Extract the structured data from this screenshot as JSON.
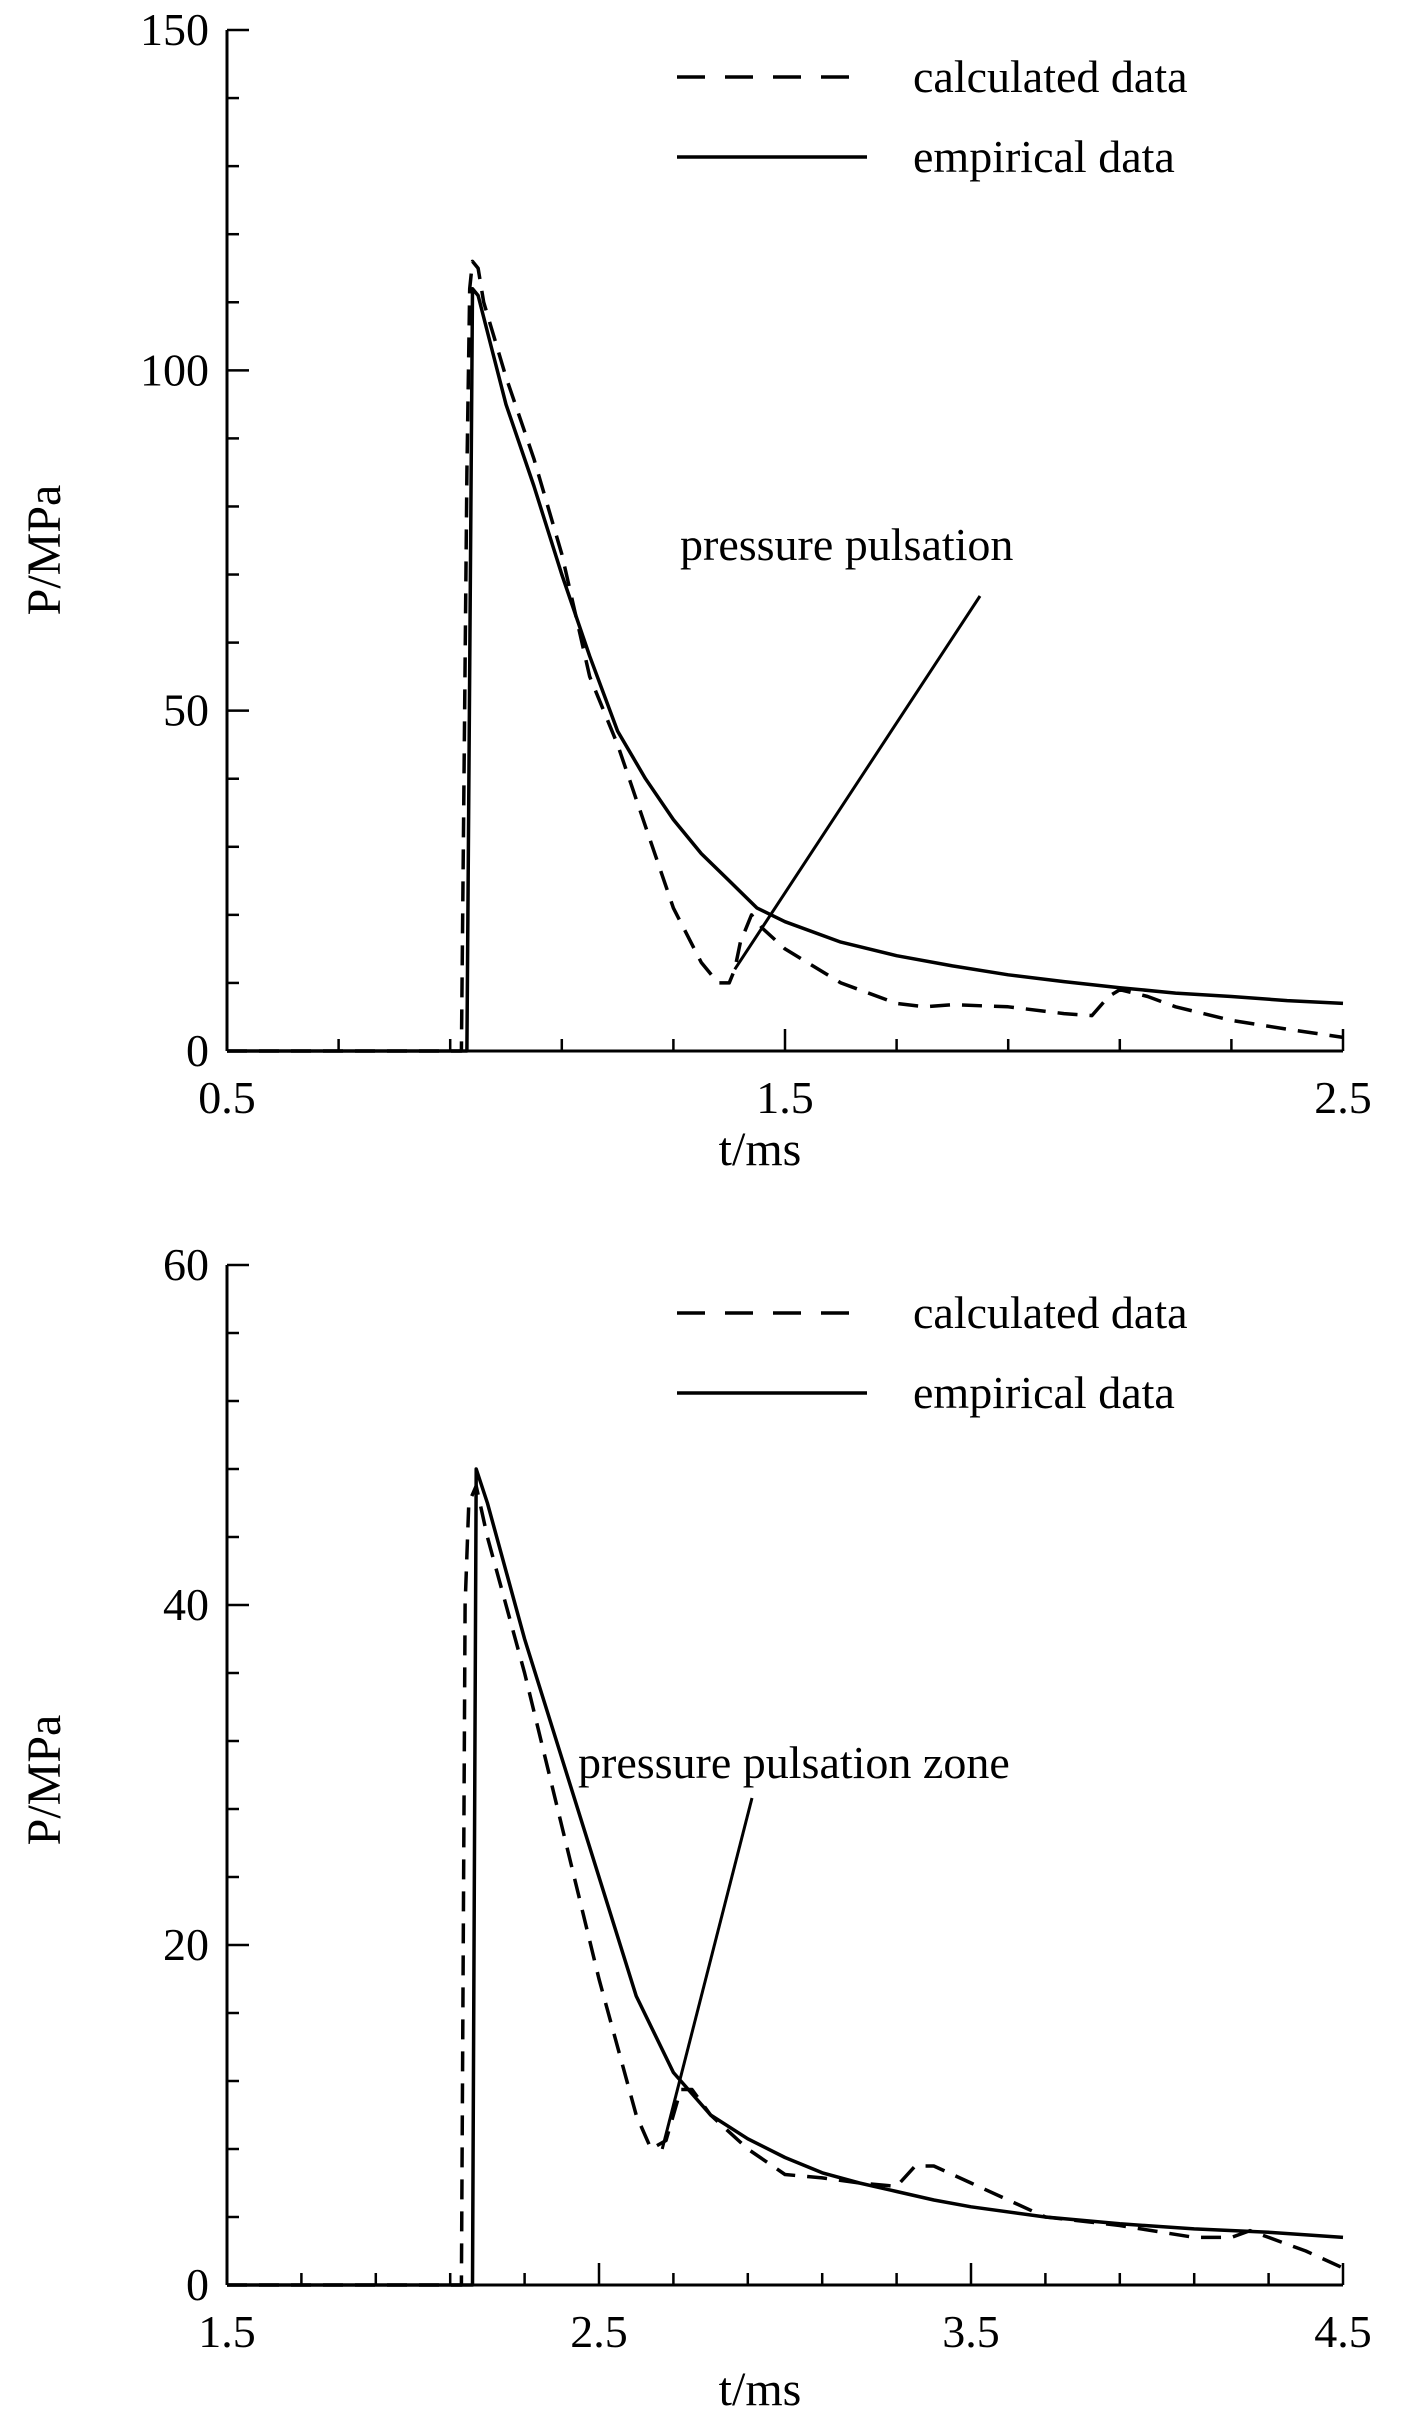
{
  "chart_data": [
    {
      "type": "line",
      "xlabel": "t/ms",
      "ylabel": "P/MPa",
      "xlim": [
        0.5,
        2.5
      ],
      "ylim": [
        0,
        150
      ],
      "x_ticks": [
        0.5,
        1.5,
        2.5
      ],
      "x_tick_labels": [
        "0.5",
        "1.5",
        "2.5"
      ],
      "y_ticks": [
        0,
        50,
        100,
        150
      ],
      "y_tick_labels": [
        "0",
        "50",
        "100",
        "150"
      ],
      "legend": "top-right",
      "annotation": {
        "text": "pressure pulsation",
        "point": [
          1.41,
          12
        ]
      },
      "series": [
        {
          "name": "calculated data",
          "style": "dashed",
          "points": [
            [
              0.5,
              0
            ],
            [
              0.9,
              0
            ],
            [
              0.92,
              0
            ],
            [
              0.93,
              85
            ],
            [
              0.935,
              112
            ],
            [
              0.94,
              116
            ],
            [
              0.95,
              115
            ],
            [
              0.96,
              110
            ],
            [
              1.0,
              99
            ],
            [
              1.05,
              87
            ],
            [
              1.1,
              73
            ],
            [
              1.15,
              55
            ],
            [
              1.2,
              45
            ],
            [
              1.25,
              33
            ],
            [
              1.3,
              21
            ],
            [
              1.35,
              13
            ],
            [
              1.38,
              10
            ],
            [
              1.4,
              10
            ],
            [
              1.41,
              12
            ],
            [
              1.42,
              16
            ],
            [
              1.44,
              20
            ],
            [
              1.46,
              18
            ],
            [
              1.5,
              15
            ],
            [
              1.6,
              10
            ],
            [
              1.7,
              7
            ],
            [
              1.75,
              6.5
            ],
            [
              1.8,
              6.8
            ],
            [
              1.9,
              6.5
            ],
            [
              2.0,
              5.5
            ],
            [
              2.05,
              5.2
            ],
            [
              2.08,
              8
            ],
            [
              2.1,
              9
            ],
            [
              2.15,
              8
            ],
            [
              2.2,
              6.5
            ],
            [
              2.3,
              4.5
            ],
            [
              2.4,
              3.2
            ],
            [
              2.5,
              2
            ]
          ]
        },
        {
          "name": "empirical data",
          "style": "solid",
          "points": [
            [
              0.5,
              0
            ],
            [
              0.92,
              0
            ],
            [
              0.93,
              0
            ],
            [
              0.94,
              112
            ],
            [
              0.95,
              111
            ],
            [
              1.0,
              95
            ],
            [
              1.05,
              83
            ],
            [
              1.1,
              70
            ],
            [
              1.15,
              58
            ],
            [
              1.2,
              47
            ],
            [
              1.25,
              40
            ],
            [
              1.3,
              34
            ],
            [
              1.35,
              29
            ],
            [
              1.4,
              25
            ],
            [
              1.45,
              21
            ],
            [
              1.5,
              19
            ],
            [
              1.6,
              16
            ],
            [
              1.7,
              14
            ],
            [
              1.8,
              12.5
            ],
            [
              1.9,
              11.2
            ],
            [
              2.0,
              10.2
            ],
            [
              2.1,
              9.3
            ],
            [
              2.2,
              8.5
            ],
            [
              2.3,
              8
            ],
            [
              2.4,
              7.4
            ],
            [
              2.5,
              7
            ]
          ]
        }
      ]
    },
    {
      "type": "line",
      "xlabel": "t/ms",
      "ylabel": "P/MPa",
      "xlim": [
        1.5,
        4.5
      ],
      "ylim": [
        0,
        60
      ],
      "x_ticks": [
        1.5,
        2.5,
        3.5,
        4.5
      ],
      "x_tick_labels": [
        "1.5",
        "2.5",
        "3.5",
        "4.5"
      ],
      "y_ticks": [
        0,
        20,
        40,
        60
      ],
      "y_tick_labels": [
        "0",
        "20",
        "40",
        "60"
      ],
      "legend": "top-right",
      "annotation": {
        "text": "pressure pulsation zone",
        "point": [
          2.67,
          8
        ]
      },
      "series": [
        {
          "name": "calculated data",
          "style": "dashed",
          "points": [
            [
              1.5,
              0
            ],
            [
              2.1,
              0
            ],
            [
              2.13,
              0
            ],
            [
              2.14,
              40
            ],
            [
              2.15,
              46
            ],
            [
              2.17,
              47
            ],
            [
              2.2,
              44
            ],
            [
              2.3,
              36
            ],
            [
              2.4,
              27
            ],
            [
              2.5,
              18
            ],
            [
              2.6,
              10
            ],
            [
              2.64,
              8
            ],
            [
              2.68,
              8.5
            ],
            [
              2.72,
              11.5
            ],
            [
              2.75,
              11.5
            ],
            [
              2.8,
              10
            ],
            [
              2.9,
              8
            ],
            [
              3.0,
              6.5
            ],
            [
              3.1,
              6.3
            ],
            [
              3.2,
              6
            ],
            [
              3.3,
              5.8
            ],
            [
              3.35,
              7
            ],
            [
              3.4,
              7
            ],
            [
              3.5,
              6
            ],
            [
              3.6,
              5
            ],
            [
              3.7,
              4
            ],
            [
              3.9,
              3.5
            ],
            [
              4.1,
              2.8
            ],
            [
              4.2,
              2.8
            ],
            [
              4.25,
              3.2
            ],
            [
              4.3,
              2.8
            ],
            [
              4.4,
              2
            ],
            [
              4.5,
              1
            ]
          ]
        },
        {
          "name": "empirical data",
          "style": "solid",
          "points": [
            [
              1.5,
              0
            ],
            [
              2.15,
              0
            ],
            [
              2.16,
              0
            ],
            [
              2.17,
              48
            ],
            [
              2.2,
              46
            ],
            [
              2.3,
              38
            ],
            [
              2.4,
              31
            ],
            [
              2.5,
              24
            ],
            [
              2.6,
              17
            ],
            [
              2.7,
              12.5
            ],
            [
              2.8,
              10
            ],
            [
              2.9,
              8.6
            ],
            [
              3.0,
              7.5
            ],
            [
              3.1,
              6.6
            ],
            [
              3.2,
              6
            ],
            [
              3.3,
              5.5
            ],
            [
              3.4,
              5
            ],
            [
              3.5,
              4.6
            ],
            [
              3.7,
              4
            ],
            [
              3.9,
              3.6
            ],
            [
              4.1,
              3.3
            ],
            [
              4.3,
              3.1
            ],
            [
              4.5,
              2.8
            ]
          ]
        }
      ]
    }
  ]
}
